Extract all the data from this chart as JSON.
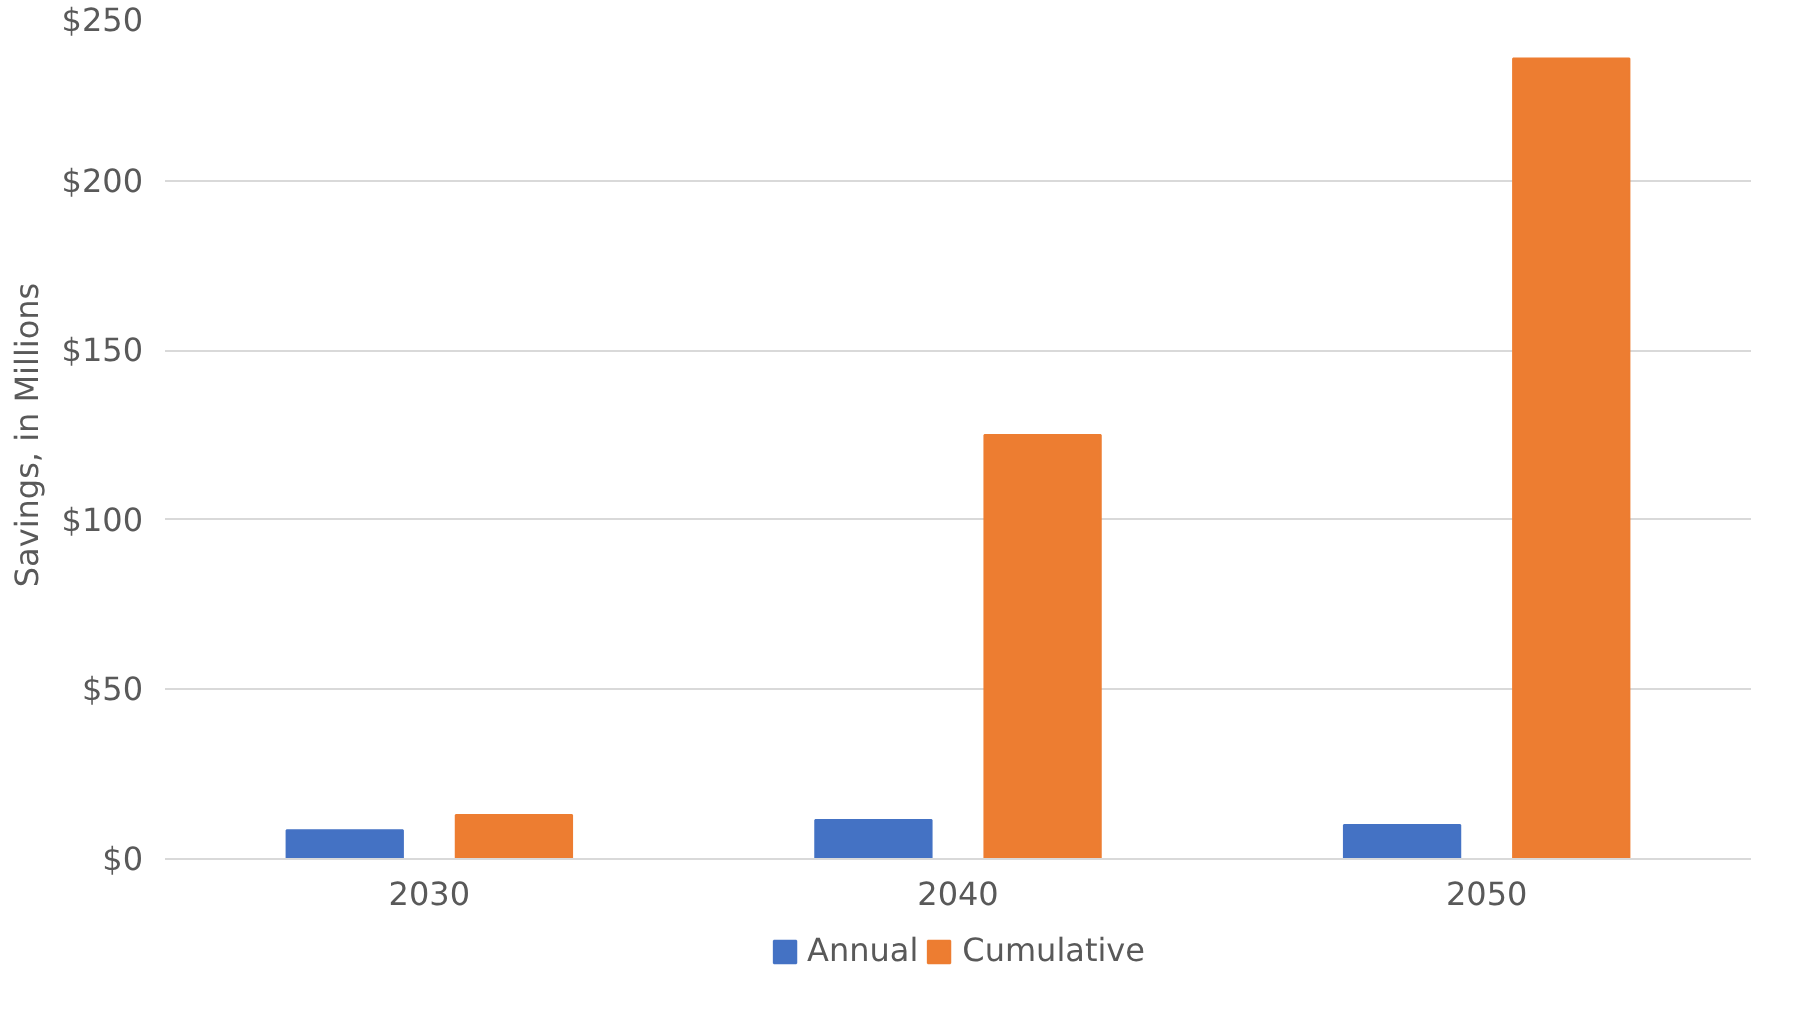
{
  "chart_data": {
    "type": "bar",
    "ylabel": "Savings, in Millions",
    "categories": [
      "2030",
      "2040",
      "2050"
    ],
    "series": [
      {
        "name": "Annual",
        "color": "#4472c4",
        "values": [
          8.5,
          11.5,
          10
        ]
      },
      {
        "name": "Cumulative",
        "color": "#ed7d31",
        "values": [
          13,
          125,
          236
        ]
      }
    ],
    "ylim": [
      0,
      250
    ],
    "yticks": [
      {
        "value": 0,
        "label": "$0"
      },
      {
        "value": 50,
        "label": "$50"
      },
      {
        "value": 100,
        "label": "$100"
      },
      {
        "value": 150,
        "label": "$150"
      },
      {
        "value": 200,
        "label": "$200"
      },
      {
        "value": 250,
        "label": "$250"
      }
    ],
    "grid": "y",
    "legend": "bottom"
  }
}
